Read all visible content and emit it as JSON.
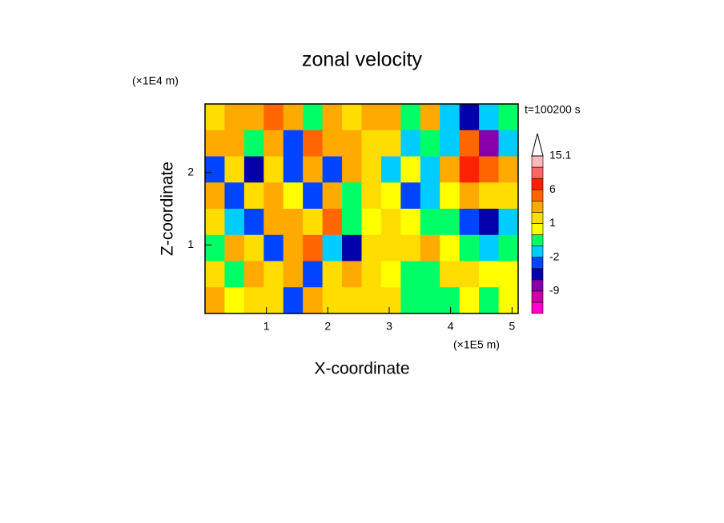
{
  "chart_data": {
    "type": "contour",
    "title": "zonal velocity",
    "x_label": "X-coordinate",
    "y_label": "Z-coordinate",
    "x_unit": "(×1E5 m)",
    "y_unit": "(×1E4 m)",
    "annotation": "t=100200 s",
    "xlim": [
      0,
      5.1
    ],
    "ylim": [
      0.05,
      2.95
    ],
    "xticks": [
      1,
      2,
      3,
      4,
      5
    ],
    "yticks": [
      1,
      2
    ],
    "z": [
      [
        1,
        3,
        2,
        5,
        2,
        -1,
        3,
        1,
        2,
        3,
        -1,
        2,
        -2,
        -5,
        -2,
        -1
      ],
      [
        3,
        2,
        -1,
        3,
        -3,
        5,
        2,
        3,
        1,
        1,
        -2,
        -1,
        -2,
        4,
        -8,
        -2
      ],
      [
        -3,
        1,
        -5,
        1,
        -4,
        3,
        -4,
        3,
        1,
        -2,
        0,
        -2,
        3,
        6,
        5,
        3
      ],
      [
        2,
        -4,
        1,
        3,
        0,
        -3,
        3,
        -1,
        1,
        0,
        -4,
        -2,
        0,
        2,
        1,
        1
      ],
      [
        1,
        -2,
        -4,
        2,
        3,
        1,
        5,
        -1,
        0,
        1,
        0,
        -1,
        -1,
        -4,
        -5,
        -2
      ],
      [
        -1,
        3,
        1,
        -3,
        2,
        4,
        -2,
        -5,
        1,
        1,
        1,
        2,
        0,
        -1,
        -2,
        -1
      ],
      [
        1,
        -1,
        2,
        1,
        3,
        -4,
        1,
        2,
        1,
        0,
        -0.5,
        -0.5,
        1,
        1,
        0.5,
        0
      ],
      [
        2,
        0,
        1,
        1,
        -4,
        3,
        1,
        1,
        1,
        1,
        -0.5,
        -0.5,
        -0.5,
        0,
        -0.5,
        0.5
      ]
    ],
    "colorbar": {
      "levels": [
        -15,
        -12,
        -9,
        -6,
        -4,
        -2,
        -1,
        0,
        1,
        2,
        4,
        6,
        9,
        12,
        15.1
      ],
      "colors": [
        "#ff00cc",
        "#cc00aa",
        "#8800aa",
        "#0000aa",
        "#0044ff",
        "#00ccff",
        "#00ff66",
        "#ffff00",
        "#ffdd00",
        "#ffaa00",
        "#ff6600",
        "#ff2200",
        "#ff6666",
        "#ffbbbb"
      ],
      "ticks": [
        15.1,
        6,
        1,
        -2,
        -9
      ]
    }
  }
}
